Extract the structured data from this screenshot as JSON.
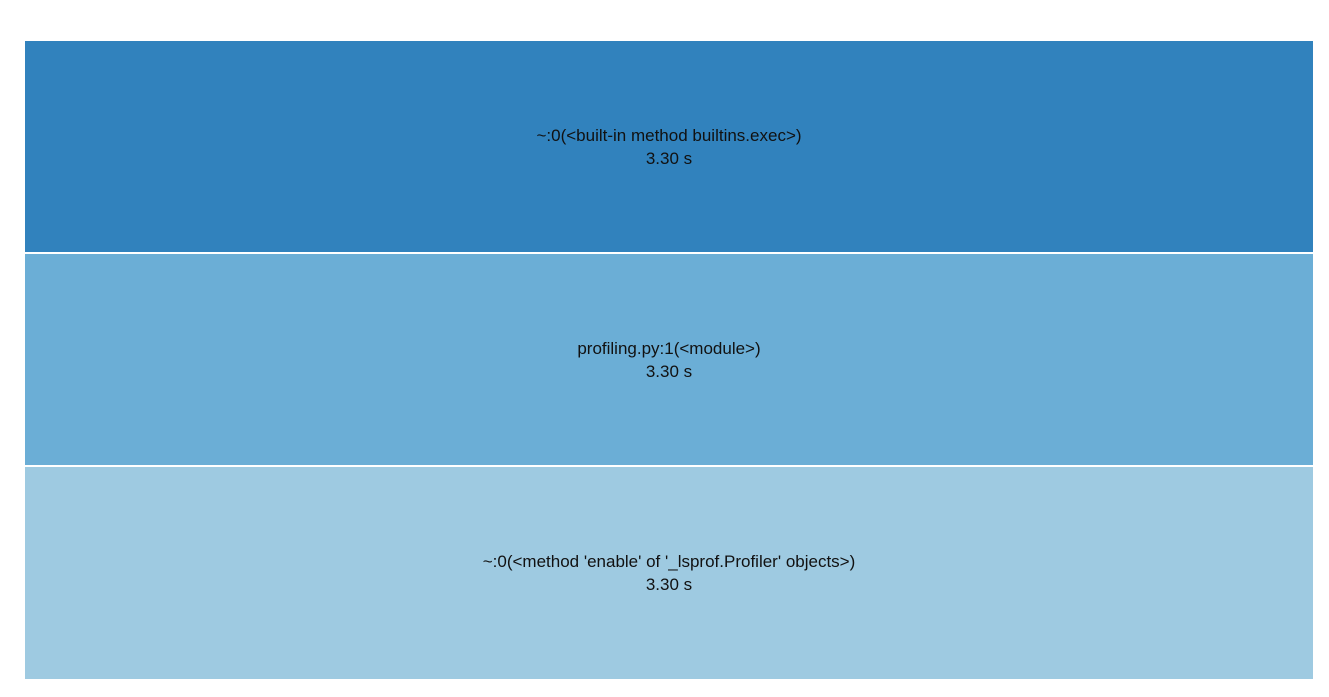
{
  "frames": [
    {
      "label": "~:0(<built-in method builtins.exec>)",
      "time": "3.30 s",
      "color": "#3182bd"
    },
    {
      "label": "profiling.py:1(<module>)",
      "time": "3.30 s",
      "color": "#6baed6"
    },
    {
      "label": "~:0(<method 'enable' of '_lsprof.Profiler' objects>)",
      "time": "3.30 s",
      "color": "#9ecae1"
    }
  ]
}
